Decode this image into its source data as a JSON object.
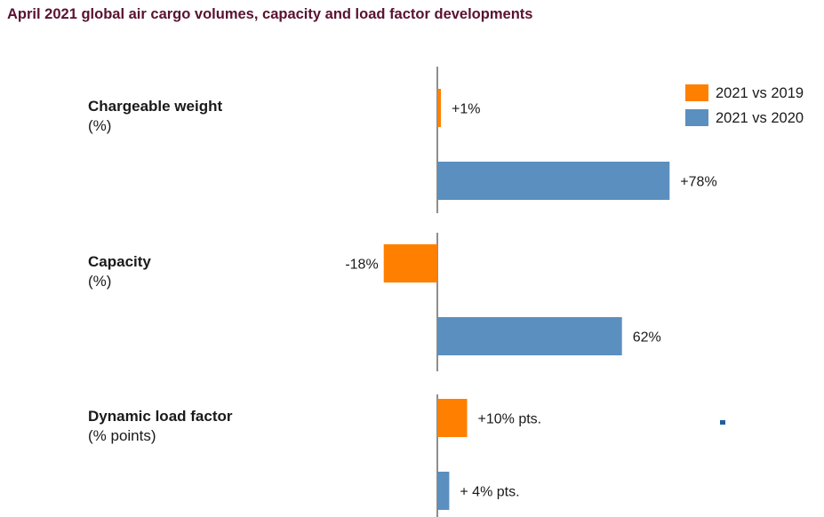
{
  "chart_data": {
    "type": "bar",
    "orientation": "horizontal",
    "title": "April 2021 global air cargo volumes, capacity and load factor developments",
    "categories": [
      {
        "name": "Chargeable weight",
        "unit": "(%)"
      },
      {
        "name": "Capacity",
        "unit": "(%)"
      },
      {
        "name": "Dynamic load factor",
        "unit": "(% points)"
      }
    ],
    "series": [
      {
        "name": "2021 vs 2019",
        "color": "#ff8000",
        "values": [
          1,
          -18,
          10
        ],
        "labels": [
          "+1%",
          "-18%",
          "+10% pts."
        ]
      },
      {
        "name": "2021 vs 2020",
        "color": "#5b8fbf",
        "values": [
          78,
          62,
          4
        ],
        "labels": [
          "+78%",
          "62%",
          "+ 4% pts."
        ]
      }
    ],
    "legend_position": "top-right",
    "grid": false
  }
}
